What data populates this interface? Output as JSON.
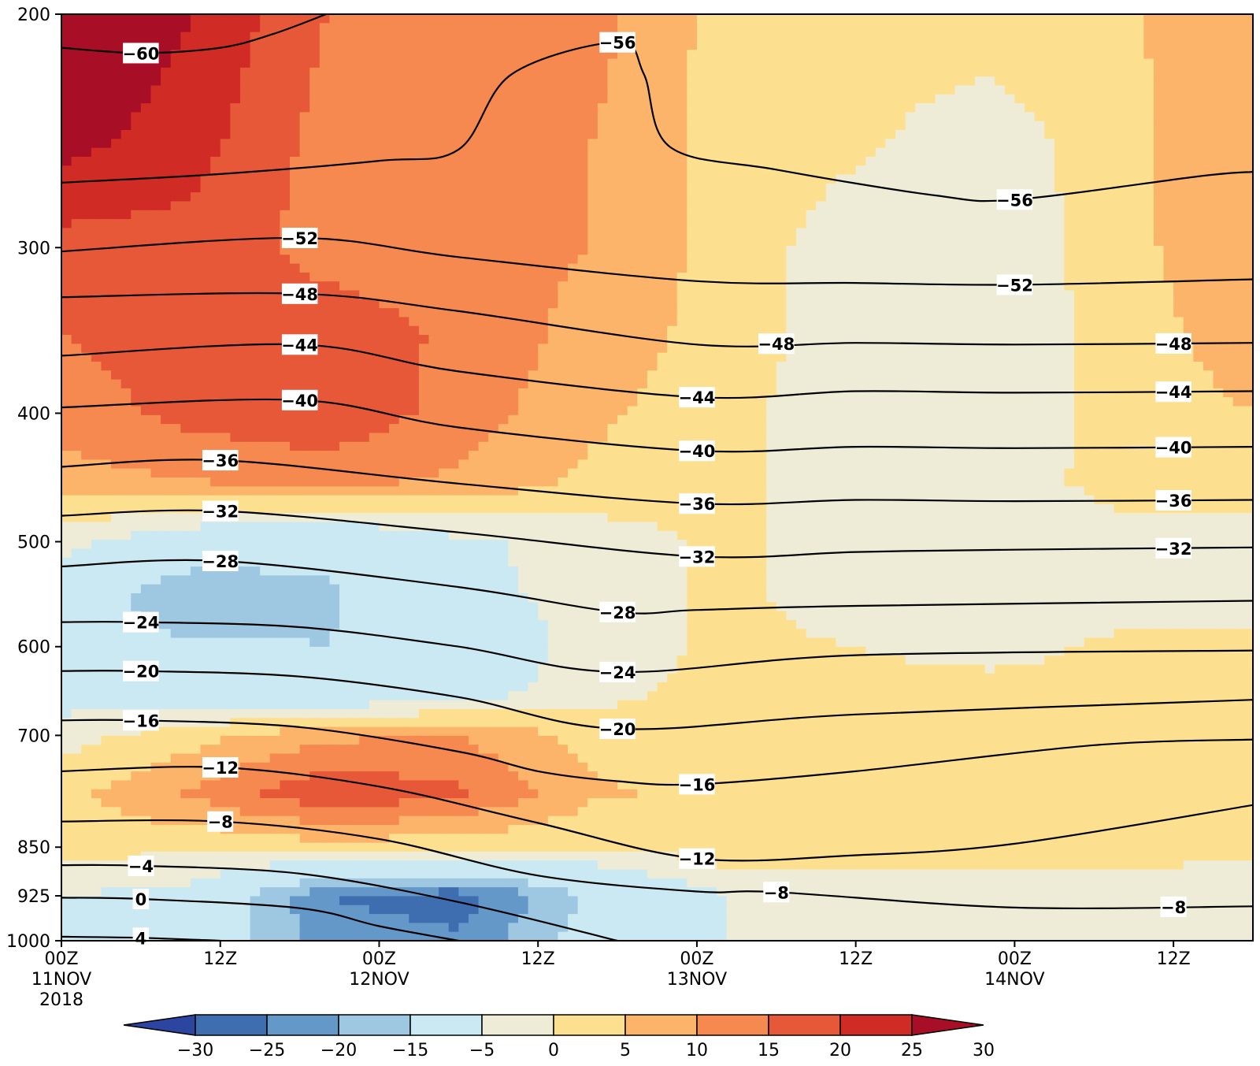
{
  "chart_data": {
    "type": "heatmap",
    "title": "",
    "xlabel": "",
    "ylabel": "",
    "x_hours": [
      0,
      12,
      24,
      36,
      48,
      60,
      72,
      84
    ],
    "x_ticks": [
      {
        "hour": 0,
        "lines": [
          "00Z",
          "11NOV",
          "2018"
        ]
      },
      {
        "hour": 12,
        "lines": [
          "12Z"
        ]
      },
      {
        "hour": 24,
        "lines": [
          "00Z",
          "12NOV"
        ]
      },
      {
        "hour": 36,
        "lines": [
          "12Z"
        ]
      },
      {
        "hour": 48,
        "lines": [
          "00Z",
          "13NOV"
        ]
      },
      {
        "hour": 60,
        "lines": [
          "12Z"
        ]
      },
      {
        "hour": 72,
        "lines": [
          "00Z",
          "14NOV"
        ]
      },
      {
        "hour": 84,
        "lines": [
          "12Z"
        ]
      }
    ],
    "xlim": [
      0,
      90
    ],
    "y_ticks": [
      "200",
      "300",
      "400",
      "500",
      "600",
      "700",
      "850",
      "925",
      "1000"
    ],
    "y_tick_values": [
      200,
      300,
      400,
      500,
      600,
      700,
      850,
      925,
      1000
    ],
    "ylim": [
      200,
      1000
    ],
    "y_scale": "log-pressure",
    "fill": {
      "levels": [
        -30,
        -25,
        -20,
        -15,
        -5,
        0,
        5,
        10,
        15,
        20,
        25,
        30
      ],
      "level_labels": [
        "−30",
        "−25",
        "−20",
        "−15",
        "−5",
        "0",
        "5",
        "10",
        "15",
        "20",
        "25",
        "30"
      ],
      "colors": [
        "#2c45a1",
        "#3e6db0",
        "#6498c8",
        "#9ec8e2",
        "#cbe9f3",
        "#eeecd6",
        "#fde08f",
        "#fcb36a",
        "#f6894f",
        "#e75838",
        "#d02b24",
        "#a80e26"
      ],
      "pressure_rows": [
        200,
        250,
        300,
        350,
        400,
        450,
        500,
        550,
        600,
        650,
        700,
        775,
        850,
        925,
        1000
      ],
      "grid": [
        [
          32,
          25,
          15,
          14,
          12,
          3,
          2,
          3,
          4,
          10
        ],
        [
          27,
          22,
          13,
          12,
          10,
          3,
          1,
          -3,
          3,
          10
        ],
        [
          18,
          18,
          13,
          12,
          10,
          3,
          -3,
          -4,
          3,
          10
        ],
        [
          15,
          18,
          18,
          14,
          8,
          3,
          -3,
          -4,
          2,
          8
        ],
        [
          12,
          17,
          19,
          13,
          6,
          2,
          -4,
          -4,
          2,
          5
        ],
        [
          8,
          10,
          12,
          9,
          4,
          2,
          -4,
          -3,
          2,
          3
        ],
        [
          -3,
          -10,
          -13,
          -6,
          -3,
          1,
          -2,
          -3,
          -2,
          -2
        ],
        [
          -10,
          -20,
          -16,
          -7,
          -3,
          1,
          -2,
          -3,
          -2,
          -2
        ],
        [
          -12,
          -14,
          -15,
          -10,
          -3,
          1,
          0,
          -2,
          1,
          1
        ],
        [
          -8,
          -10,
          -12,
          -8,
          -2,
          2,
          2,
          2,
          2,
          2
        ],
        [
          -2,
          3,
          9,
          10,
          3,
          2,
          2,
          2,
          3,
          3
        ],
        [
          3,
          11,
          19,
          16,
          6,
          3,
          2,
          2,
          3,
          3
        ],
        [
          2,
          1,
          3,
          2,
          0,
          3,
          3,
          2,
          2,
          2
        ],
        [
          -5,
          -7,
          -25,
          -28,
          -14,
          -5,
          -3,
          -3,
          -3,
          -4
        ],
        [
          -6,
          -10,
          -22,
          -24,
          -12,
          -5,
          -3,
          -3,
          -4,
          -4
        ]
      ]
    },
    "series": [
      {
        "name": "-60",
        "label": "−60",
        "values": [
          [
            0,
            212
          ],
          [
            6,
            214
          ],
          [
            12,
            212
          ],
          [
            16,
            207
          ],
          [
            20,
            200
          ]
        ],
        "labels_at": [
          6
        ]
      },
      {
        "name": "-56",
        "label": "−56",
        "values": [
          [
            0,
            268
          ],
          [
            12,
            264
          ],
          [
            24,
            258
          ],
          [
            30,
            253
          ],
          [
            34,
            222
          ],
          [
            42,
            210
          ],
          [
            44,
            222
          ],
          [
            46,
            252
          ],
          [
            54,
            262
          ],
          [
            66,
            274
          ],
          [
            72,
            276
          ],
          [
            86,
            265
          ],
          [
            90,
            263
          ]
        ],
        "labels_at": [
          42,
          72
        ]
      },
      {
        "name": "-52",
        "label": "−52",
        "values": [
          [
            0,
            302
          ],
          [
            18,
            295
          ],
          [
            30,
            305
          ],
          [
            48,
            318
          ],
          [
            60,
            319
          ],
          [
            72,
            320
          ],
          [
            90,
            317
          ]
        ],
        "labels_at": [
          18,
          72
        ]
      },
      {
        "name": "-48",
        "label": "−48",
        "values": [
          [
            0,
            327
          ],
          [
            18,
            325
          ],
          [
            30,
            335
          ],
          [
            48,
            355
          ],
          [
            60,
            354
          ],
          [
            72,
            355
          ],
          [
            90,
            354
          ]
        ],
        "labels_at": [
          18,
          54,
          84
        ]
      },
      {
        "name": "-44",
        "label": "−44",
        "values": [
          [
            0,
            362
          ],
          [
            18,
            355
          ],
          [
            30,
            372
          ],
          [
            48,
            389
          ],
          [
            60,
            385
          ],
          [
            72,
            386
          ],
          [
            90,
            385
          ]
        ],
        "labels_at": [
          18,
          48,
          84
        ]
      },
      {
        "name": "-40",
        "label": "−40",
        "values": [
          [
            0,
            396
          ],
          [
            18,
            391
          ],
          [
            30,
            410
          ],
          [
            48,
            427
          ],
          [
            60,
            424
          ],
          [
            72,
            425
          ],
          [
            90,
            424
          ]
        ],
        "labels_at": [
          18,
          48,
          84
        ]
      },
      {
        "name": "-36",
        "label": "−36",
        "values": [
          [
            0,
            439
          ],
          [
            12,
            434
          ],
          [
            30,
            452
          ],
          [
            48,
            468
          ],
          [
            60,
            465
          ],
          [
            72,
            466
          ],
          [
            90,
            465
          ]
        ],
        "labels_at": [
          12,
          48,
          84
        ]
      },
      {
        "name": "-32",
        "label": "−32",
        "values": [
          [
            0,
            478
          ],
          [
            12,
            474
          ],
          [
            30,
            492
          ],
          [
            48,
            513
          ],
          [
            60,
            509
          ],
          [
            72,
            507
          ],
          [
            90,
            505
          ]
        ],
        "labels_at": [
          12,
          48,
          84
        ]
      },
      {
        "name": "-28",
        "label": "−28",
        "values": [
          [
            0,
            522
          ],
          [
            12,
            517
          ],
          [
            30,
            541
          ],
          [
            42,
            565
          ],
          [
            48,
            563
          ],
          [
            60,
            559
          ],
          [
            90,
            554
          ]
        ],
        "labels_at": [
          12,
          42
        ]
      },
      {
        "name": "-24",
        "label": "−24",
        "values": [
          [
            0,
            575
          ],
          [
            6,
            575
          ],
          [
            18,
            580
          ],
          [
            30,
            600
          ],
          [
            42,
            627
          ],
          [
            60,
            609
          ],
          [
            90,
            604
          ]
        ],
        "labels_at": [
          6,
          42
        ]
      },
      {
        "name": "-20",
        "label": "−20",
        "values": [
          [
            0,
            626
          ],
          [
            6,
            626
          ],
          [
            18,
            632
          ],
          [
            30,
            655
          ],
          [
            42,
            692
          ],
          [
            60,
            675
          ],
          [
            90,
            658
          ]
        ],
        "labels_at": [
          6,
          42
        ]
      },
      {
        "name": "-16",
        "label": "−16",
        "values": [
          [
            0,
            682
          ],
          [
            6,
            682
          ],
          [
            18,
            690
          ],
          [
            30,
            720
          ],
          [
            36,
            745
          ],
          [
            42,
            758
          ],
          [
            48,
            762
          ],
          [
            60,
            745
          ],
          [
            78,
            712
          ],
          [
            90,
            705
          ]
        ],
        "labels_at": [
          6,
          48
        ]
      },
      {
        "name": "-12",
        "label": "−12",
        "values": [
          [
            0,
            745
          ],
          [
            12,
            740
          ],
          [
            24,
            765
          ],
          [
            36,
            815
          ],
          [
            48,
            867
          ],
          [
            60,
            862
          ],
          [
            72,
            845
          ],
          [
            90,
            790
          ]
        ],
        "labels_at": [
          12,
          48
        ]
      },
      {
        "name": "-8",
        "label": "−8",
        "values": [
          [
            0,
            813
          ],
          [
            12,
            813
          ],
          [
            24,
            838
          ],
          [
            36,
            893
          ],
          [
            48,
            918
          ],
          [
            54,
            919
          ],
          [
            72,
            944
          ],
          [
            90,
            942
          ]
        ],
        "labels_at": [
          12,
          54,
          84
        ]
      },
      {
        "name": "-4",
        "label": "−4",
        "values": [
          [
            0,
            877
          ],
          [
            6,
            878
          ],
          [
            18,
            890
          ],
          [
            30,
            935
          ],
          [
            42,
            1000
          ]
        ],
        "labels_at": [
          6
        ]
      },
      {
        "name": "0",
        "label": "0",
        "values": [
          [
            0,
            928
          ],
          [
            6,
            930
          ],
          [
            18,
            945
          ],
          [
            24,
            975
          ],
          [
            30,
            1000
          ]
        ],
        "labels_at": [
          6
        ]
      },
      {
        "name": "4",
        "label": "4",
        "values": [
          [
            0,
            993
          ],
          [
            6,
            995
          ],
          [
            12,
            1000
          ]
        ],
        "labels_at": [
          6
        ]
      }
    ]
  }
}
